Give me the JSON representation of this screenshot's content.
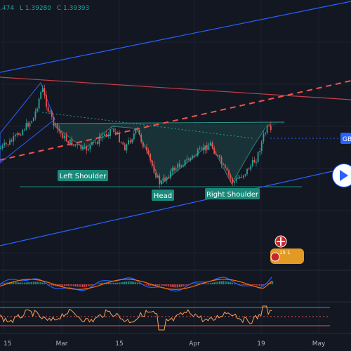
{
  "header": {
    "ohlc": [
      ".474",
      "L 1.39280",
      "C 1.39393"
    ]
  },
  "price_tag": "GB",
  "labels": {
    "left_shoulder": "Left Shoulder",
    "head": "Head",
    "right_shoulder": "Right Shoulder"
  },
  "event_badge": "15 1",
  "colors": {
    "background": "#131722",
    "up": "#26a69a",
    "down": "#ef5350",
    "channel": "#2962ff",
    "pattern_fill": "#1d4848",
    "label_bg": "#1b8a7b",
    "rsi": "#f7a156",
    "macd": "#2962ff",
    "signal": "#ff6d00",
    "price_tag": "#2962ff"
  },
  "chart_data": {
    "type": "candlestick",
    "x_ticks": [
      "15",
      "Mar",
      "15",
      "Apr",
      "19",
      "May"
    ],
    "patterns": [
      "Left Shoulder",
      "Head",
      "Right Shoulder"
    ],
    "indicators": [
      "MACD",
      "RSI"
    ],
    "grid": true
  }
}
